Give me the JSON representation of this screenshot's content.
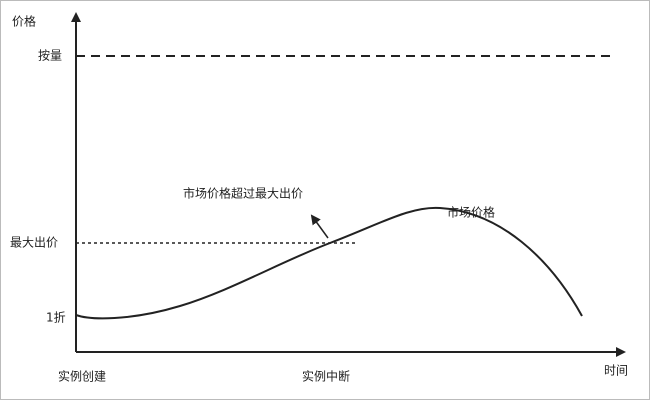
{
  "axes": {
    "y_label": "价格",
    "x_label": "时间"
  },
  "levels": [
    {
      "label": "按量"
    },
    {
      "label": "最大出价"
    },
    {
      "label": "1折"
    }
  ],
  "x_labels": [
    "实例创建",
    "实例中断"
  ],
  "curve_label": "市场价格",
  "annotation": "市场价格超过最大出价"
}
